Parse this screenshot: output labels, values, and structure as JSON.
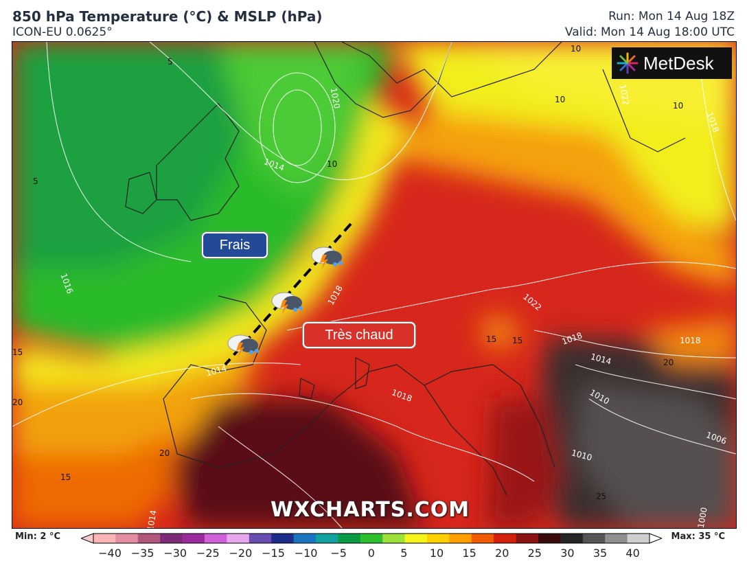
{
  "header": {
    "title": "850 hPa Temperature (°C) & MSLP (hPa)",
    "model": "ICON-EU 0.0625°",
    "run": "Run: Mon 14 Aug 18Z",
    "valid": "Valid: Mon 14 Aug 18:00 UTC"
  },
  "logo": {
    "text": "MetDesk"
  },
  "watermark": "WXCHARTS.COM",
  "annotations": {
    "cool": "Frais",
    "hot": "Très chaud"
  },
  "isobar_labels": [
    "1014",
    "1020",
    "1022",
    "1018",
    "1018",
    "1022",
    "1018",
    "1014",
    "1010",
    "1018",
    "1018",
    "1014",
    "1010",
    "1006",
    "1016",
    "1014",
    "1000"
  ],
  "temperature_labels": [
    "5",
    "5",
    "10",
    "10",
    "10",
    "10",
    "15",
    "20",
    "15",
    "15",
    "15",
    "20",
    "20",
    "25"
  ],
  "legend": {
    "min": "Min: 2 °C",
    "max": "Max: 35 °C",
    "ticks": [
      "−40",
      "−35",
      "−30",
      "−25",
      "−20",
      "−15",
      "−10",
      "−5",
      "0",
      "5",
      "10",
      "15",
      "20",
      "25",
      "30",
      "35",
      "40"
    ],
    "colors": [
      "#f7b5b5",
      "#e48fa0",
      "#b3567b",
      "#7d2a78",
      "#9a2a9e",
      "#d060d8",
      "#e8a8ee",
      "#6a4db0",
      "#1e2c8c",
      "#1a74c0",
      "#11a0a0",
      "#0a9a45",
      "#2fbf2f",
      "#9de03a",
      "#f6f41d",
      "#ffd100",
      "#ff9e00",
      "#f05a00",
      "#d2200c",
      "#8a1212",
      "#3a0b0b",
      "#262626",
      "#555555",
      "#8f8f8f",
      "#cfcfcf"
    ]
  }
}
